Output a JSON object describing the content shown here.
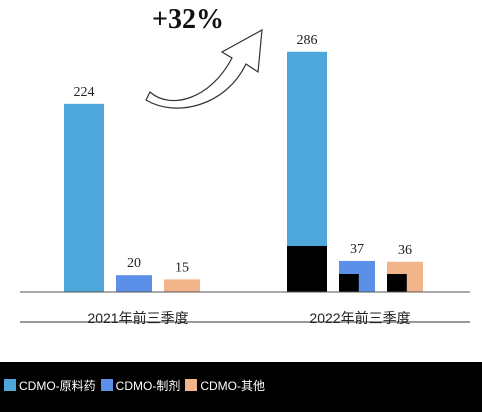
{
  "callout": "+32%",
  "colors": {
    "api_cdmo": "#4EA7DA",
    "bottom_segment": "#000000",
    "formulation_cdmo": "#5B8FE8",
    "other_cdmo": "#F2B48A",
    "axis": "#555555",
    "legend_bg": "#000000"
  },
  "chart_data": {
    "type": "bar",
    "title": "",
    "categories": [
      "2021年前三季度",
      "2022年前三季度"
    ],
    "series": [
      {
        "name": "原料药CDMO",
        "values": [
          224,
          286
        ],
        "labels": [
          "224",
          "286"
        ]
      },
      {
        "name": "制剂CDMO",
        "values": [
          20,
          37
        ],
        "labels": [
          "20",
          "37"
        ]
      },
      {
        "name": "其他CDMO",
        "values": [
          15,
          36
        ],
        "labels": [
          "15",
          "36"
        ]
      }
    ],
    "ylim": [
      0,
      300
    ],
    "grid": false,
    "legend_position": "bottom",
    "annotation": "+32%"
  },
  "legend": {
    "items": [
      {
        "label": "CDMO-原料药",
        "color": "#4EA7DA"
      },
      {
        "label": "CDMO-制剂",
        "color": "#5B8FE8"
      },
      {
        "label": "CDMO-其他",
        "color": "#F2B48A"
      }
    ]
  }
}
